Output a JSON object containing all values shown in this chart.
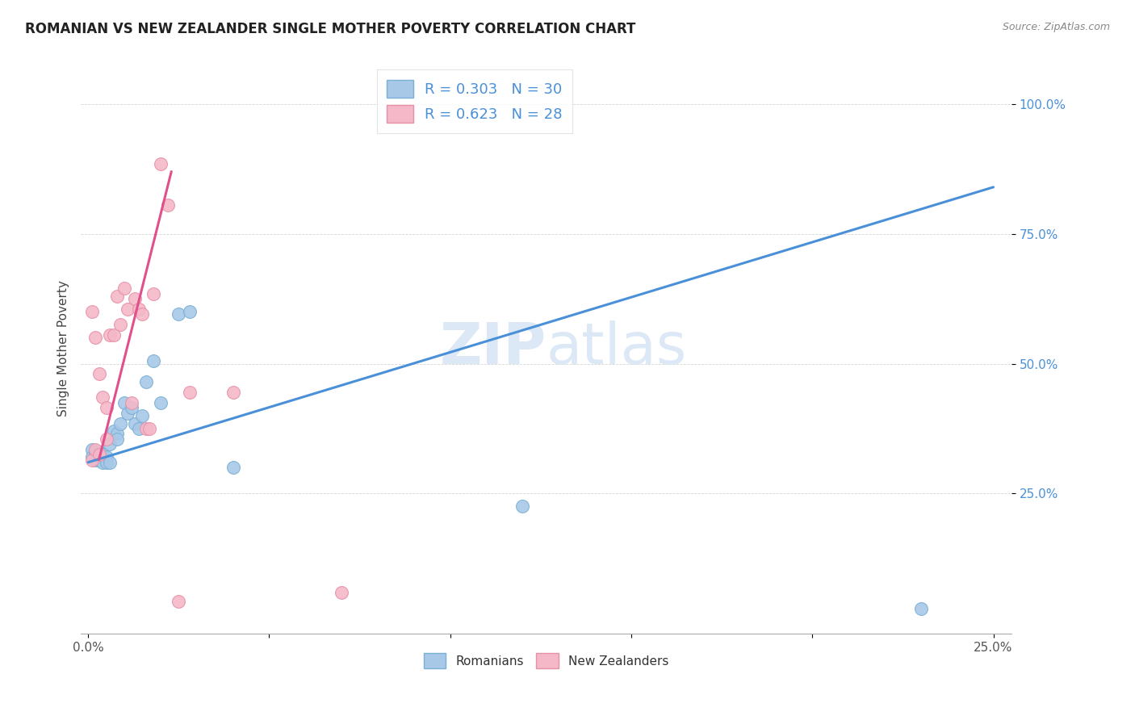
{
  "title": "ROMANIAN VS NEW ZEALANDER SINGLE MOTHER POVERTY CORRELATION CHART",
  "source": "Source: ZipAtlas.com",
  "ylabel": "Single Mother Poverty",
  "ytick_labels": [
    "100.0%",
    "75.0%",
    "50.0%",
    "25.0%"
  ],
  "ytick_values": [
    1.0,
    0.75,
    0.5,
    0.25
  ],
  "xlim": [
    -0.002,
    0.255
  ],
  "ylim": [
    -0.02,
    1.08
  ],
  "legend_r_blue": "R = 0.303",
  "legend_n_blue": "N = 30",
  "legend_r_pink": "R = 0.623",
  "legend_n_pink": "N = 28",
  "blue_marker_color": "#a8c8e8",
  "blue_edge_color": "#7ab0d4",
  "pink_marker_color": "#f4b8c8",
  "pink_edge_color": "#e890a8",
  "trend_blue": "#4a90d9",
  "trend_pink": "#e0508a",
  "watermark_color": "#dce8f5",
  "blue_scatter_x": [
    0.001,
    0.001,
    0.002,
    0.002,
    0.003,
    0.003,
    0.004,
    0.004,
    0.005,
    0.005,
    0.006,
    0.006,
    0.007,
    0.008,
    0.008,
    0.009,
    0.01,
    0.011,
    0.012,
    0.013,
    0.014,
    0.015,
    0.016,
    0.018,
    0.02,
    0.025,
    0.028,
    0.04,
    0.12,
    0.23
  ],
  "blue_scatter_y": [
    0.335,
    0.32,
    0.33,
    0.315,
    0.33,
    0.315,
    0.325,
    0.31,
    0.32,
    0.31,
    0.345,
    0.31,
    0.37,
    0.365,
    0.355,
    0.385,
    0.425,
    0.405,
    0.415,
    0.385,
    0.375,
    0.4,
    0.465,
    0.505,
    0.425,
    0.595,
    0.6,
    0.3,
    0.225,
    0.028
  ],
  "pink_scatter_x": [
    0.001,
    0.001,
    0.002,
    0.002,
    0.003,
    0.003,
    0.004,
    0.005,
    0.005,
    0.006,
    0.007,
    0.008,
    0.009,
    0.01,
    0.011,
    0.012,
    0.013,
    0.014,
    0.015,
    0.016,
    0.017,
    0.018,
    0.02,
    0.022,
    0.025,
    0.028,
    0.04,
    0.07
  ],
  "pink_scatter_y": [
    0.315,
    0.6,
    0.335,
    0.55,
    0.325,
    0.48,
    0.435,
    0.415,
    0.355,
    0.555,
    0.555,
    0.63,
    0.575,
    0.645,
    0.605,
    0.425,
    0.625,
    0.605,
    0.595,
    0.375,
    0.375,
    0.635,
    0.885,
    0.805,
    0.042,
    0.445,
    0.445,
    0.06
  ],
  "blue_trend_x": [
    0.0,
    0.25
  ],
  "blue_trend_y": [
    0.31,
    0.84
  ],
  "pink_trend_x": [
    0.003,
    0.023
  ],
  "pink_trend_y": [
    0.315,
    0.87
  ]
}
